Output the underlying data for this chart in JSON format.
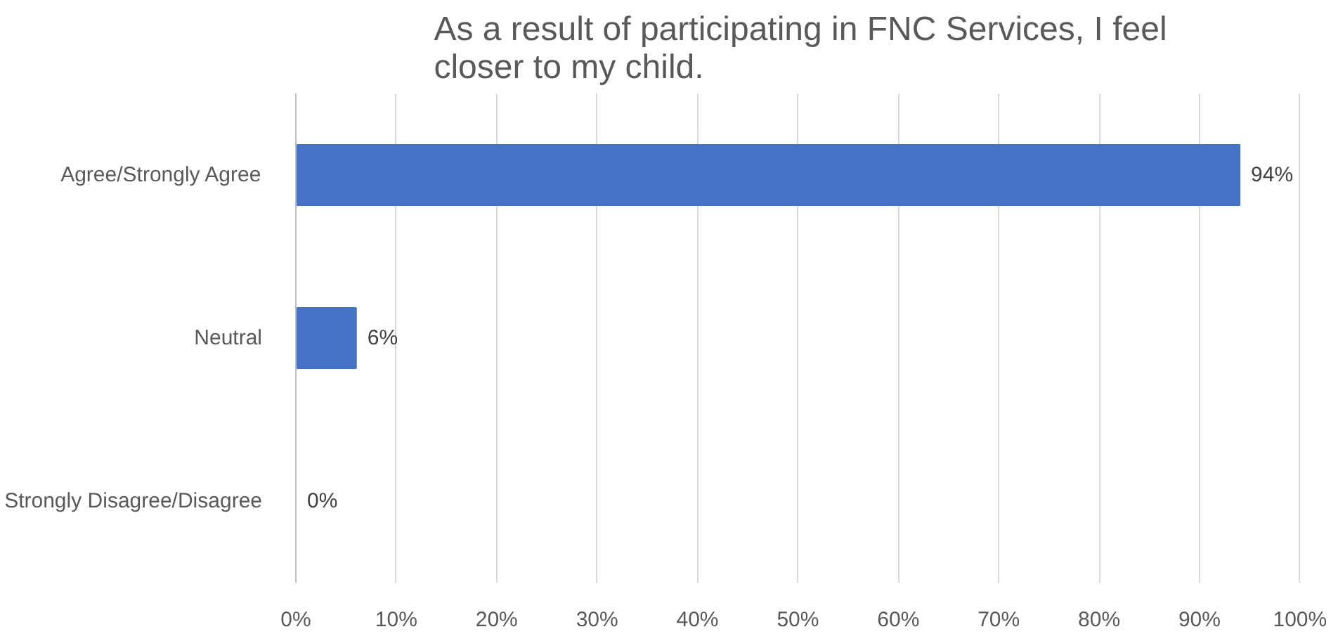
{
  "chart_data": {
    "type": "bar",
    "orientation": "horizontal",
    "title": "As a result of participating in FNC Services, I feel closer to my child.",
    "categories": [
      "Agree/Strongly Agree",
      "Neutral",
      "Strongly Disagree/Disagree"
    ],
    "values": [
      94,
      6,
      0
    ],
    "color": "#4472c4",
    "value_labels": [
      "94%",
      "6%",
      "0%"
    ],
    "xlim": [
      0,
      100
    ],
    "xticks": [
      {
        "value": 0,
        "label": "0%"
      },
      {
        "value": 10,
        "label": "10%"
      },
      {
        "value": 20,
        "label": "20%"
      },
      {
        "value": 30,
        "label": "30%"
      },
      {
        "value": 40,
        "label": "40%"
      },
      {
        "value": 50,
        "label": "50%"
      },
      {
        "value": 60,
        "label": "60%"
      },
      {
        "value": 70,
        "label": "70%"
      },
      {
        "value": 80,
        "label": "80%"
      },
      {
        "value": 90,
        "label": "90%"
      },
      {
        "value": 100,
        "label": "100%"
      }
    ],
    "grid": "x"
  }
}
